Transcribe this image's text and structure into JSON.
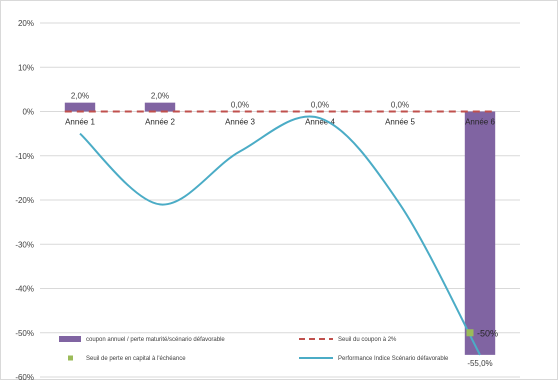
{
  "chart_data": {
    "type": "bar",
    "categories": [
      "Année 1",
      "Année 2",
      "Année 3",
      "Année 4",
      "Année 5",
      "Année 6"
    ],
    "ylim": [
      -60,
      20
    ],
    "yticks": [
      20,
      10,
      0,
      -10,
      -20,
      -30,
      -40,
      -50,
      -60
    ],
    "ytick_labels": [
      "20%",
      "10%",
      "0%",
      "-10%",
      "-20%",
      "-30%",
      "-40%",
      "-50%",
      "-60%"
    ],
    "grid": true,
    "legend_position": "bottom",
    "series": [
      {
        "name": "coupon annuel / perte maturité/scénario défavorable",
        "type": "bar",
        "color": "#8064a2",
        "values": [
          2.0,
          2.0,
          0.0,
          0.0,
          0.0,
          -55.0
        ],
        "labels": [
          "2,0%",
          "2,0%",
          "0,0%",
          "0,0%",
          "0,0%",
          "-55,0%"
        ]
      },
      {
        "name": "Seuil du coupon à 2%",
        "type": "dashed-line",
        "color": "#c0504d",
        "values": [
          0,
          0,
          0,
          0,
          0,
          0
        ]
      },
      {
        "name": "Seuil de perte en capital à l'échéance",
        "type": "marker",
        "color": "#9bbb59",
        "x_index": 5,
        "value": -50,
        "label": "-50%"
      },
      {
        "name": "Performance Indice Scénario défavorable",
        "type": "line",
        "color": "#4bacc6",
        "points": [
          {
            "x": 1,
            "y": -5
          },
          {
            "x": 2,
            "y": -21
          },
          {
            "x": 3,
            "y": -9
          },
          {
            "x": 4,
            "y": -1.5
          },
          {
            "x": 5,
            "y": -21
          },
          {
            "x": 6,
            "y": -55
          }
        ]
      }
    ]
  }
}
